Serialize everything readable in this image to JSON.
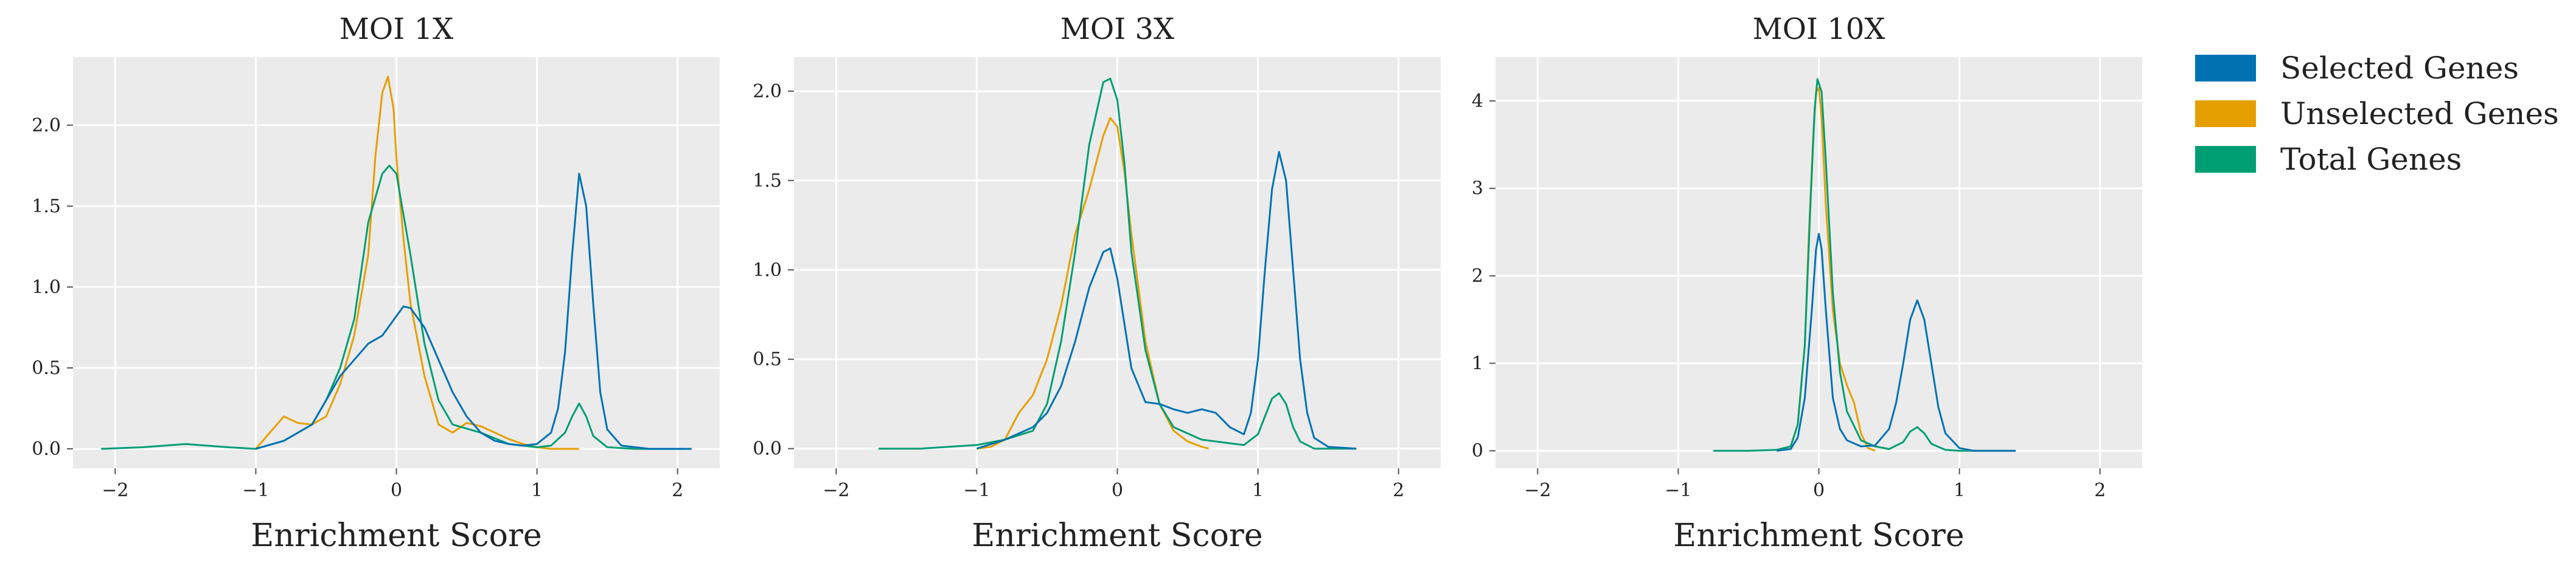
{
  "colors": {
    "selected": "#0072b2",
    "unselected": "#e69f00",
    "total": "#009e73",
    "background": "#ebebeb",
    "grid": "#ffffff"
  },
  "legend": {
    "placement": "right",
    "items": [
      {
        "key": "selected",
        "label": "Selected Genes"
      },
      {
        "key": "unselected",
        "label": "Unselected Genes"
      },
      {
        "key": "total",
        "label": "Total Genes"
      }
    ]
  },
  "chart_data": [
    {
      "type": "line",
      "title": "MOI 1X",
      "xlabel": "Enrichment Score",
      "ylabel": "",
      "xlim": [
        -2.3,
        2.3
      ],
      "ylim": [
        -0.12,
        2.42
      ],
      "grid": true,
      "xticks": [
        -2,
        -1,
        0,
        1,
        2
      ],
      "xtick_labels": [
        "−2",
        "−1",
        "0",
        "1",
        "2"
      ],
      "yticks": [
        0.0,
        0.5,
        1.0,
        1.5,
        2.0
      ],
      "ytick_labels": [
        "0.0",
        "0.5",
        "1.0",
        "1.5",
        "2.0"
      ],
      "series": [
        {
          "name": "Unselected Genes",
          "color": "#e69f00",
          "x": [
            -1.0,
            -0.9,
            -0.8,
            -0.7,
            -0.6,
            -0.5,
            -0.4,
            -0.3,
            -0.2,
            -0.15,
            -0.1,
            -0.06,
            -0.02,
            0.0,
            0.05,
            0.1,
            0.2,
            0.3,
            0.4,
            0.5,
            0.6,
            0.7,
            0.8,
            0.9,
            1.0,
            1.1,
            1.2,
            1.3
          ],
          "y": [
            0.0,
            0.1,
            0.2,
            0.16,
            0.15,
            0.2,
            0.4,
            0.7,
            1.2,
            1.8,
            2.2,
            2.3,
            2.1,
            1.8,
            1.3,
            0.9,
            0.45,
            0.15,
            0.1,
            0.16,
            0.14,
            0.1,
            0.06,
            0.03,
            0.01,
            0.0,
            0.0,
            0.0
          ]
        },
        {
          "name": "Total Genes",
          "color": "#009e73",
          "x": [
            -2.1,
            -1.8,
            -1.5,
            -1.2,
            -1.0,
            -0.8,
            -0.6,
            -0.5,
            -0.4,
            -0.3,
            -0.2,
            -0.1,
            -0.05,
            0.0,
            0.1,
            0.2,
            0.3,
            0.4,
            0.6,
            0.8,
            1.0,
            1.1,
            1.2,
            1.25,
            1.3,
            1.35,
            1.4,
            1.5,
            1.7,
            1.9,
            2.05
          ],
          "y": [
            0.0,
            0.01,
            0.03,
            0.01,
            0.0,
            0.05,
            0.15,
            0.3,
            0.5,
            0.8,
            1.4,
            1.7,
            1.75,
            1.7,
            1.2,
            0.65,
            0.3,
            0.15,
            0.1,
            0.03,
            0.01,
            0.02,
            0.1,
            0.2,
            0.28,
            0.2,
            0.08,
            0.01,
            0.0,
            0.0,
            0.0
          ]
        },
        {
          "name": "Selected Genes",
          "color": "#0072b2",
          "x": [
            -1.0,
            -0.8,
            -0.6,
            -0.5,
            -0.4,
            -0.3,
            -0.2,
            -0.1,
            0.0,
            0.05,
            0.1,
            0.2,
            0.3,
            0.4,
            0.5,
            0.6,
            0.7,
            0.8,
            0.9,
            1.0,
            1.1,
            1.15,
            1.2,
            1.25,
            1.3,
            1.35,
            1.4,
            1.45,
            1.5,
            1.6,
            1.8,
            2.0,
            2.1
          ],
          "y": [
            0.0,
            0.05,
            0.15,
            0.3,
            0.45,
            0.55,
            0.65,
            0.7,
            0.82,
            0.88,
            0.87,
            0.75,
            0.55,
            0.35,
            0.2,
            0.1,
            0.05,
            0.03,
            0.02,
            0.03,
            0.1,
            0.25,
            0.6,
            1.2,
            1.7,
            1.5,
            0.9,
            0.35,
            0.12,
            0.02,
            0.0,
            0.0,
            0.0
          ]
        }
      ]
    },
    {
      "type": "line",
      "title": "MOI 3X",
      "xlabel": "Enrichment Score",
      "ylabel": "",
      "xlim": [
        -2.3,
        2.3
      ],
      "ylim": [
        -0.11,
        2.19
      ],
      "grid": true,
      "xticks": [
        -2,
        -1,
        0,
        1,
        2
      ],
      "xtick_labels": [
        "−2",
        "−1",
        "0",
        "1",
        "2"
      ],
      "yticks": [
        0.0,
        0.5,
        1.0,
        1.5,
        2.0
      ],
      "ytick_labels": [
        "0.0",
        "0.5",
        "1.0",
        "1.5",
        "2.0"
      ],
      "series": [
        {
          "name": "Unselected Genes",
          "color": "#e69f00",
          "x": [
            -1.0,
            -0.9,
            -0.8,
            -0.7,
            -0.6,
            -0.5,
            -0.4,
            -0.3,
            -0.2,
            -0.15,
            -0.1,
            -0.05,
            0.0,
            0.05,
            0.1,
            0.2,
            0.3,
            0.4,
            0.5,
            0.6,
            0.65
          ],
          "y": [
            0.0,
            0.01,
            0.05,
            0.2,
            0.3,
            0.5,
            0.8,
            1.2,
            1.45,
            1.6,
            1.75,
            1.85,
            1.8,
            1.55,
            1.2,
            0.6,
            0.25,
            0.1,
            0.04,
            0.01,
            0.0
          ]
        },
        {
          "name": "Total Genes",
          "color": "#009e73",
          "x": [
            -1.7,
            -1.4,
            -1.2,
            -1.0,
            -0.8,
            -0.6,
            -0.5,
            -0.4,
            -0.3,
            -0.2,
            -0.1,
            -0.05,
            0.0,
            0.05,
            0.1,
            0.2,
            0.3,
            0.4,
            0.6,
            0.8,
            0.9,
            1.0,
            1.05,
            1.1,
            1.15,
            1.2,
            1.25,
            1.3,
            1.4,
            1.5,
            1.7
          ],
          "y": [
            0.0,
            0.0,
            0.01,
            0.02,
            0.05,
            0.1,
            0.25,
            0.6,
            1.1,
            1.7,
            2.05,
            2.07,
            1.95,
            1.6,
            1.1,
            0.55,
            0.25,
            0.12,
            0.05,
            0.03,
            0.02,
            0.08,
            0.18,
            0.28,
            0.31,
            0.25,
            0.12,
            0.04,
            0.0,
            0.0,
            0.0
          ]
        },
        {
          "name": "Selected Genes",
          "color": "#0072b2",
          "x": [
            -1.0,
            -0.8,
            -0.6,
            -0.5,
            -0.4,
            -0.3,
            -0.2,
            -0.1,
            -0.05,
            0.0,
            0.1,
            0.2,
            0.3,
            0.4,
            0.5,
            0.6,
            0.7,
            0.8,
            0.9,
            0.95,
            1.0,
            1.05,
            1.1,
            1.15,
            1.2,
            1.25,
            1.3,
            1.35,
            1.4,
            1.5,
            1.7
          ],
          "y": [
            0.0,
            0.05,
            0.12,
            0.2,
            0.35,
            0.6,
            0.9,
            1.1,
            1.12,
            0.95,
            0.45,
            0.26,
            0.25,
            0.22,
            0.2,
            0.22,
            0.2,
            0.12,
            0.08,
            0.2,
            0.5,
            1.0,
            1.45,
            1.66,
            1.5,
            1.0,
            0.5,
            0.2,
            0.06,
            0.01,
            0.0
          ]
        }
      ]
    },
    {
      "type": "line",
      "title": "MOI 10X",
      "xlabel": "Enrichment Score",
      "ylabel": "",
      "xlim": [
        -2.3,
        2.3
      ],
      "ylim": [
        -0.2,
        4.5
      ],
      "grid": true,
      "xticks": [
        -2,
        -1,
        0,
        1,
        2
      ],
      "xtick_labels": [
        "−2",
        "−1",
        "0",
        "1",
        "2"
      ],
      "yticks": [
        0,
        1,
        2,
        3,
        4
      ],
      "ytick_labels": [
        "0",
        "1",
        "2",
        "3",
        "4"
      ],
      "series": [
        {
          "name": "Unselected Genes",
          "color": "#e69f00",
          "x": [
            -0.3,
            -0.2,
            -0.15,
            -0.1,
            -0.07,
            -0.04,
            -0.02,
            0.0,
            0.02,
            0.05,
            0.1,
            0.15,
            0.2,
            0.25,
            0.3,
            0.35,
            0.4
          ],
          "y": [
            0.0,
            0.05,
            0.3,
            1.2,
            2.5,
            3.6,
            4.1,
            4.15,
            3.8,
            2.8,
            1.6,
            1.0,
            0.75,
            0.55,
            0.2,
            0.03,
            0.0
          ]
        },
        {
          "name": "Total Genes",
          "color": "#009e73",
          "x": [
            -0.75,
            -0.5,
            -0.3,
            -0.2,
            -0.15,
            -0.1,
            -0.06,
            -0.03,
            -0.01,
            0.02,
            0.05,
            0.1,
            0.15,
            0.2,
            0.3,
            0.4,
            0.5,
            0.6,
            0.65,
            0.7,
            0.75,
            0.8,
            0.9,
            1.0,
            1.4
          ],
          "y": [
            0.0,
            0.0,
            0.01,
            0.05,
            0.3,
            1.2,
            2.8,
            3.9,
            4.25,
            4.1,
            3.3,
            1.8,
            0.9,
            0.45,
            0.12,
            0.05,
            0.02,
            0.1,
            0.22,
            0.27,
            0.2,
            0.08,
            0.01,
            0.0,
            0.0
          ]
        },
        {
          "name": "Selected Genes",
          "color": "#0072b2",
          "x": [
            -0.3,
            -0.2,
            -0.15,
            -0.1,
            -0.05,
            -0.02,
            0.0,
            0.02,
            0.05,
            0.1,
            0.15,
            0.2,
            0.3,
            0.4,
            0.5,
            0.55,
            0.6,
            0.65,
            0.7,
            0.75,
            0.8,
            0.85,
            0.9,
            1.0,
            1.1,
            1.4
          ],
          "y": [
            0.0,
            0.02,
            0.15,
            0.6,
            1.6,
            2.3,
            2.48,
            2.3,
            1.6,
            0.6,
            0.25,
            0.12,
            0.05,
            0.06,
            0.25,
            0.55,
            1.0,
            1.5,
            1.72,
            1.5,
            1.0,
            0.5,
            0.2,
            0.03,
            0.0,
            0.0
          ]
        }
      ]
    }
  ]
}
